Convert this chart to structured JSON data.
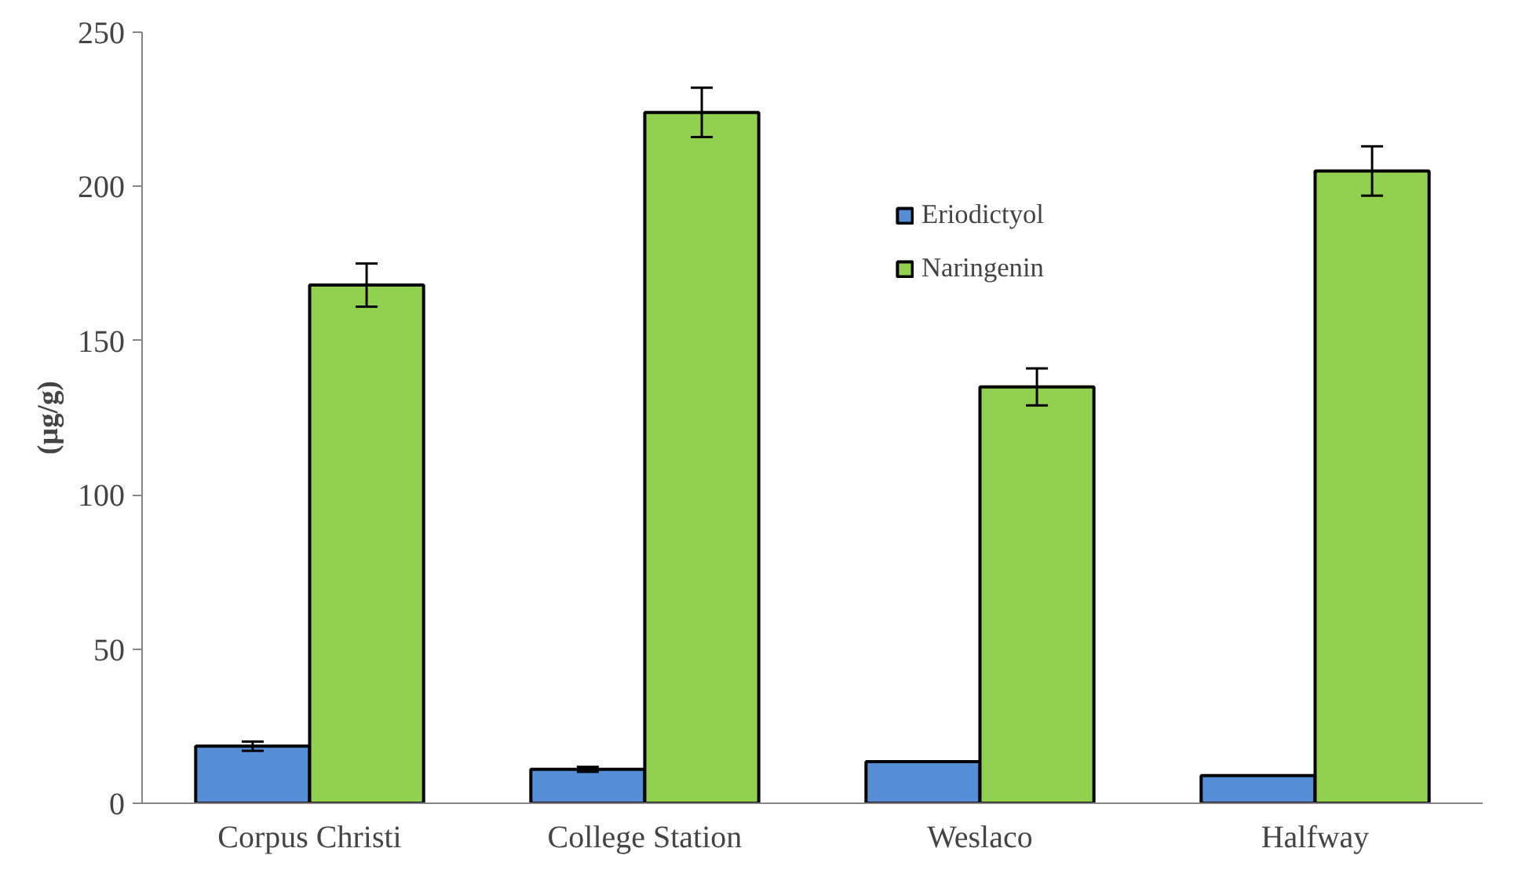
{
  "chart_data": {
    "type": "bar",
    "ylabel": "(µg/g)",
    "categories": [
      "Corpus Christi",
      "College Station",
      "Weslaco",
      "Halfway"
    ],
    "series": [
      {
        "name": "Eriodictyol",
        "color": "#558ed5",
        "values": [
          18.5,
          11,
          13.5,
          9
        ],
        "errors": [
          1.5,
          0.8,
          null,
          null
        ]
      },
      {
        "name": "Naringenin",
        "color": "#92d050",
        "values": [
          168,
          224,
          135,
          205
        ],
        "errors": [
          7,
          8,
          6,
          8
        ]
      }
    ],
    "ylim": [
      0,
      250
    ],
    "yticks": [
      0,
      50,
      100,
      150,
      200,
      250
    ],
    "grid": false,
    "legend": "top right"
  }
}
